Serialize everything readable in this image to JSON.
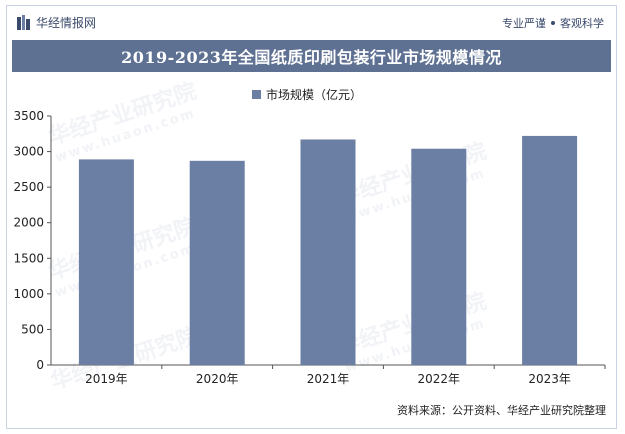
{
  "header": {
    "brand": "华经情报网",
    "slogan_left": "专业严谨",
    "slogan_right": "客观科学"
  },
  "watermark": {
    "cn": "华经产业研究院",
    "url": "www.huaon.com"
  },
  "footer": {
    "source": "资料来源：公开资料、华经产业研究院整理"
  },
  "colors": {
    "bar": "#6b7ea3",
    "title_bg": "#5f7193",
    "axis": "#555555"
  },
  "chart_data": {
    "type": "bar",
    "title": "2019-2023年全国纸质印刷包装行业市场规模情况",
    "categories": [
      "2019年",
      "2020年",
      "2021年",
      "2022年",
      "2023年"
    ],
    "series": [
      {
        "name": "市场规模（亿元）",
        "values": [
          2890,
          2870,
          3170,
          3040,
          3220
        ]
      }
    ],
    "ylim": [
      0,
      3500
    ],
    "yticks": [
      0,
      500,
      1000,
      1500,
      2000,
      2500,
      3000,
      3500
    ],
    "grid": false,
    "legend_position": "top-center"
  }
}
